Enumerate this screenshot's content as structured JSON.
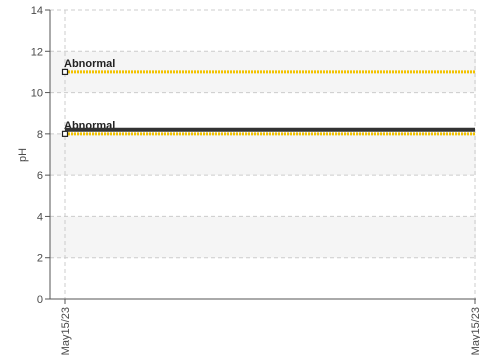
{
  "chart_data": {
    "type": "line",
    "ylabel": "pH",
    "ylim": [
      0,
      14
    ],
    "yticks": [
      0,
      2,
      4,
      6,
      8,
      10,
      12,
      14
    ],
    "y_tick_labels": [
      "0",
      "2",
      "4",
      "6",
      "8",
      "10",
      "12",
      "14"
    ],
    "x": [
      "May15/23",
      "May15/23"
    ],
    "x_tick_labels": [
      "May15/23",
      "May15/23"
    ],
    "grid": true,
    "series": [
      {
        "values": [
          8.2,
          8.2
        ],
        "color": "#333333"
      }
    ],
    "reference_lines": [
      {
        "value": 11.0,
        "label": "Abnormal",
        "color": "#f2c200"
      },
      {
        "value": 8.0,
        "label": "Abnormal",
        "color": "#f2c200"
      }
    ],
    "band_colors": [
      "#ffffff",
      "#f5f5f5"
    ]
  }
}
